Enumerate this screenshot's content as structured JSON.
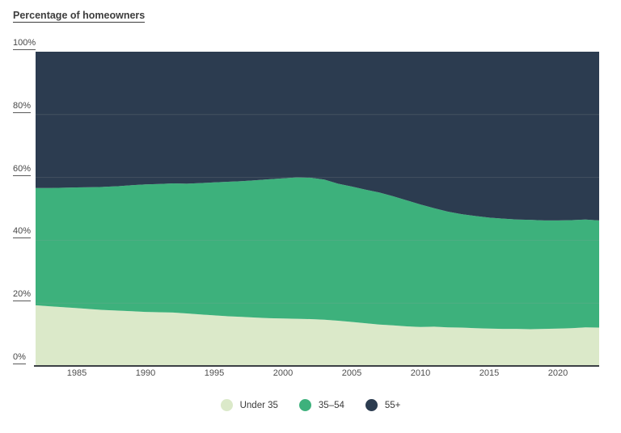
{
  "page_title": "Percentage of homeowners",
  "colors": {
    "background": "#ffffff",
    "title_text": "#3d3d3d",
    "axis_text": "#4a4a4a",
    "axis_line": "#3b4045",
    "gridline": "rgba(150,160,160,0.22)"
  },
  "chart_data": {
    "type": "area",
    "stacked": true,
    "title": "Percentage of homeowners",
    "xlabel": "",
    "ylabel": "",
    "ylim": [
      0,
      100
    ],
    "grid": "faint horizontal lines at 20/40/60/80",
    "legend_position": "bottom-center",
    "x": [
      1982,
      1983,
      1984,
      1985,
      1986,
      1987,
      1988,
      1989,
      1990,
      1991,
      1992,
      1993,
      1994,
      1995,
      1996,
      1997,
      1998,
      1999,
      2000,
      2001,
      2002,
      2003,
      2004,
      2005,
      2006,
      2007,
      2008,
      2009,
      2010,
      2011,
      2012,
      2013,
      2014,
      2015,
      2016,
      2017,
      2018,
      2019,
      2020,
      2021,
      2022,
      2023
    ],
    "x_ticks": [
      1985,
      1990,
      1995,
      2000,
      2005,
      2010,
      2015,
      2020
    ],
    "y_ticks": [
      0,
      20,
      40,
      60,
      80,
      100
    ],
    "y_tick_suffix": "%",
    "series": [
      {
        "name": "Under 35",
        "color": "#dbe9c9",
        "values": [
          19.3,
          19.0,
          18.7,
          18.4,
          18.1,
          17.8,
          17.6,
          17.4,
          17.2,
          17.1,
          17.0,
          16.7,
          16.4,
          16.1,
          15.8,
          15.6,
          15.4,
          15.2,
          15.1,
          15.0,
          14.9,
          14.7,
          14.4,
          14.0,
          13.6,
          13.2,
          12.9,
          12.6,
          12.4,
          12.5,
          12.3,
          12.2,
          12.0,
          11.9,
          11.8,
          11.8,
          11.7,
          11.8,
          11.9,
          12.0,
          12.3,
          12.2
        ]
      },
      {
        "name": "35–54",
        "color": "#3db17c",
        "values": [
          37.3,
          37.6,
          38.0,
          38.4,
          38.8,
          39.2,
          39.6,
          40.1,
          40.6,
          40.8,
          41.1,
          41.3,
          41.8,
          42.3,
          42.8,
          43.2,
          43.7,
          44.2,
          44.6,
          45.0,
          45.0,
          44.6,
          43.6,
          43.1,
          42.5,
          42.0,
          41.1,
          40.1,
          39.0,
          37.7,
          36.8,
          36.1,
          35.7,
          35.3,
          35.1,
          34.8,
          34.8,
          34.5,
          34.4,
          34.4,
          34.3,
          34.1
        ]
      },
      {
        "name": "55+",
        "color": "#2c3c50",
        "values": [
          43.4,
          43.4,
          43.3,
          43.2,
          43.1,
          43.0,
          42.8,
          42.5,
          42.2,
          42.1,
          41.9,
          42.0,
          41.8,
          41.6,
          41.4,
          41.2,
          40.9,
          40.6,
          40.3,
          40.0,
          40.1,
          40.7,
          42.0,
          42.9,
          43.9,
          44.8,
          46.0,
          47.3,
          48.6,
          49.8,
          50.9,
          51.7,
          52.3,
          52.8,
          53.1,
          53.4,
          53.5,
          53.7,
          53.7,
          53.6,
          53.4,
          53.7
        ]
      }
    ]
  }
}
